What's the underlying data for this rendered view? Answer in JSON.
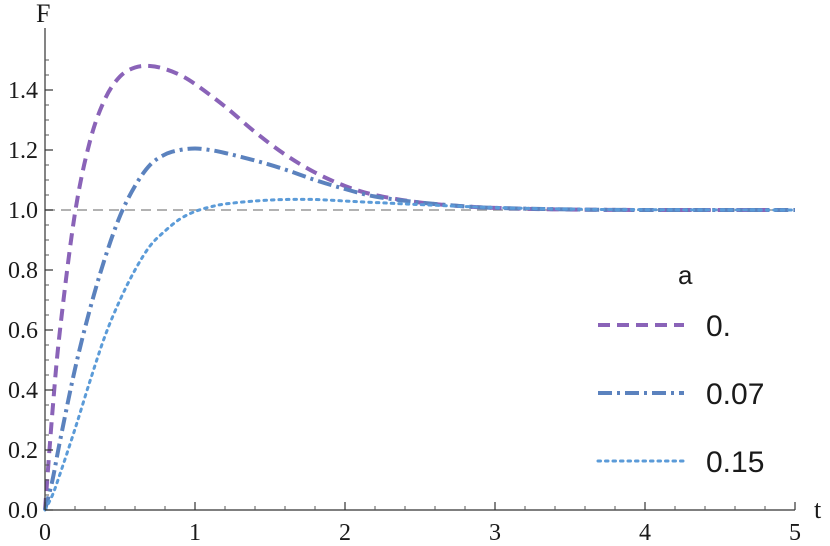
{
  "chart_data": {
    "type": "line",
    "xlabel": "t",
    "ylabel": "F",
    "xlim": [
      0,
      5
    ],
    "ylim": [
      0,
      1.5
    ],
    "x_ticks": [
      0,
      1,
      2,
      3,
      4,
      5
    ],
    "x_tick_labels": [
      "0",
      "1",
      "2",
      "3",
      "4",
      "5"
    ],
    "y_ticks": [
      0,
      0.2,
      0.4,
      0.6,
      0.8,
      1.0,
      1.2,
      1.4
    ],
    "y_tick_labels": [
      "0.0",
      "0.2",
      "0.4",
      "0.6",
      "0.8",
      "1.0",
      "1.2",
      "1.4"
    ],
    "reference_line": {
      "y": 1.0,
      "style": "dashed",
      "color": "#999999"
    },
    "legend": {
      "title": "a",
      "placement": "right"
    },
    "series": [
      {
        "name": "0.",
        "color": "#8a63b8",
        "style": "dashed",
        "x": [
          0,
          0.05,
          0.1,
          0.2,
          0.3,
          0.4,
          0.5,
          0.6,
          0.7,
          0.8,
          0.9,
          1.0,
          1.2,
          1.4,
          1.6,
          1.8,
          2.0,
          2.2,
          2.5,
          2.8,
          3.0,
          3.3,
          3.6,
          4.0,
          4.5,
          5.0
        ],
        "y": [
          0,
          0.33,
          0.6,
          0.99,
          1.23,
          1.37,
          1.445,
          1.475,
          1.48,
          1.47,
          1.45,
          1.42,
          1.345,
          1.26,
          1.185,
          1.125,
          1.08,
          1.05,
          1.025,
          1.012,
          1.007,
          1.003,
          1.001,
          1.0,
          1.0,
          1.0
        ]
      },
      {
        "name": "0.07",
        "color": "#5b82be",
        "style": "dash-dot",
        "x": [
          0,
          0.05,
          0.1,
          0.2,
          0.3,
          0.4,
          0.5,
          0.6,
          0.7,
          0.8,
          0.9,
          1.0,
          1.1,
          1.2,
          1.4,
          1.6,
          1.8,
          2.0,
          2.2,
          2.5,
          2.8,
          3.0,
          3.5,
          4.0,
          5.0
        ],
        "y": [
          0,
          0.1,
          0.23,
          0.47,
          0.67,
          0.84,
          0.98,
          1.08,
          1.15,
          1.185,
          1.2,
          1.205,
          1.2,
          1.19,
          1.165,
          1.135,
          1.1,
          1.07,
          1.045,
          1.025,
          1.012,
          1.007,
          1.002,
          1.0,
          1.0
        ]
      },
      {
        "name": "0.15",
        "color": "#5b9bd8",
        "style": "dotted",
        "x": [
          0,
          0.05,
          0.1,
          0.2,
          0.3,
          0.4,
          0.5,
          0.6,
          0.7,
          0.8,
          0.9,
          1.0,
          1.1,
          1.2,
          1.4,
          1.6,
          1.8,
          2.0,
          2.2,
          2.5,
          3.0,
          3.5,
          4.0,
          5.0
        ],
        "y": [
          0,
          0.05,
          0.12,
          0.27,
          0.43,
          0.58,
          0.7,
          0.8,
          0.88,
          0.93,
          0.97,
          0.995,
          1.01,
          1.02,
          1.03,
          1.035,
          1.035,
          1.03,
          1.025,
          1.018,
          1.008,
          1.003,
          1.001,
          1.0
        ]
      }
    ]
  }
}
